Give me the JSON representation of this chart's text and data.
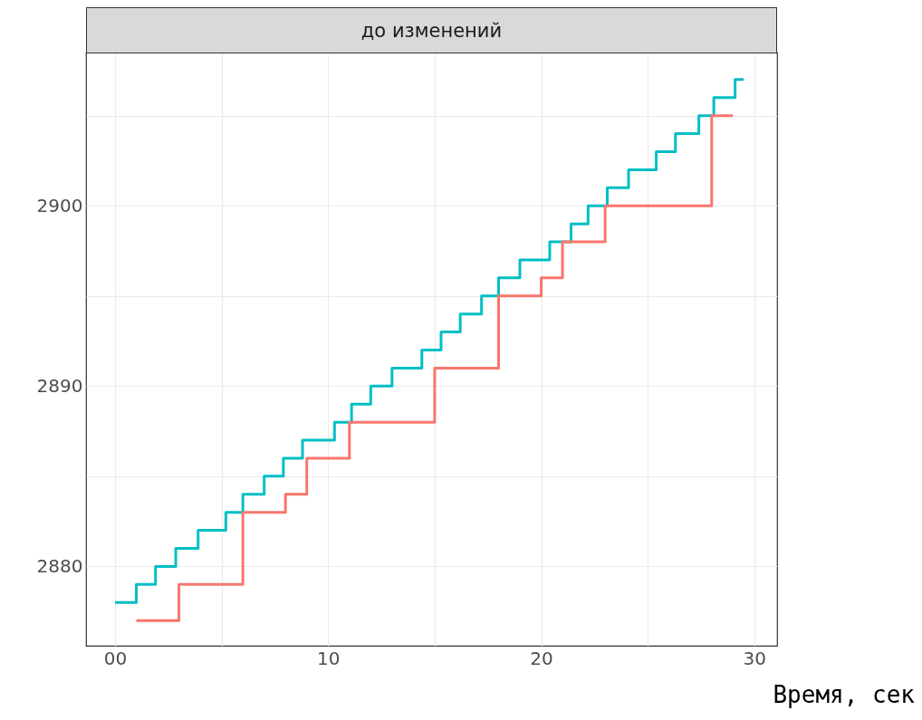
{
  "chart_data": {
    "type": "step",
    "title": "до изменений",
    "xlabel": "Время, сек",
    "xlim": [
      -1.36,
      31.07
    ],
    "ylim": [
      2875.6,
      2908.5
    ],
    "xticks": [
      {
        "value": 0,
        "label": "00"
      },
      {
        "value": 5,
        "label": null
      },
      10,
      {
        "value": 15,
        "label": null
      },
      20,
      {
        "value": 25,
        "label": null
      },
      30
    ],
    "yticks": [
      2880,
      {
        "value": 2885,
        "label": null
      },
      2890,
      {
        "value": 2895,
        "label": null
      },
      2900,
      {
        "value": 2905,
        "label": null
      }
    ],
    "grid": true,
    "series": [
      {
        "color": "#00bfc4",
        "x": [
          0,
          1,
          1.9,
          2.85,
          3.9,
          5.2,
          6,
          7,
          7.9,
          8.8,
          10.3,
          11.1,
          12,
          13,
          14.4,
          15.3,
          16.2,
          17.2,
          18,
          19,
          20.4,
          21.4,
          22.2,
          23.1,
          24.1,
          25.4,
          26.3,
          27.4,
          28.1,
          29.1,
          29.5
        ],
        "values": [
          2878,
          2879,
          2880,
          2881,
          2882,
          2883,
          2884,
          2885,
          2886,
          2887,
          2888,
          2889,
          2890,
          2891,
          2892,
          2893,
          2894,
          2895,
          2896,
          2897,
          2898,
          2899,
          2900,
          2901,
          2902,
          2903,
          2904,
          2905,
          2906,
          2907,
          2907
        ]
      },
      {
        "color": "#f8766d",
        "x": [
          1,
          3,
          6,
          8,
          9,
          11,
          15,
          18,
          20,
          21,
          23,
          28,
          29
        ],
        "values": [
          2877,
          2879,
          2883,
          2884,
          2886,
          2888,
          2891,
          2895,
          2896,
          2898,
          2900,
          2905,
          2905
        ]
      }
    ]
  }
}
